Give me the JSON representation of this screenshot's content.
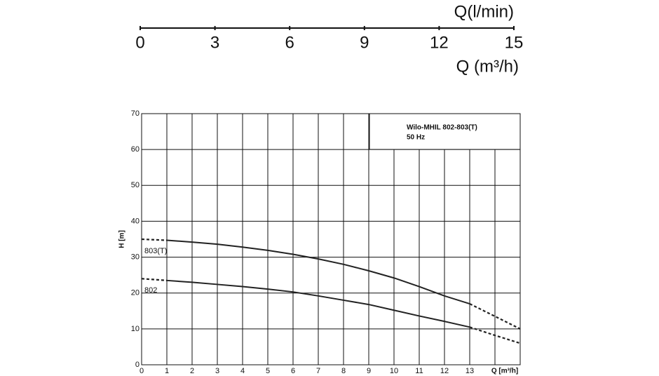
{
  "chart_data": [
    {
      "type": "scale",
      "title": "Q(l/min)",
      "xlabel": "Q (m³/h)",
      "xlim": [
        0,
        15
      ],
      "xticks": [
        0,
        3,
        6,
        9,
        12,
        15
      ]
    },
    {
      "type": "line",
      "title": "Wilo-MHIL 802-803(T)",
      "subtitle": "50 Hz",
      "ylabel": "H [m]",
      "xlabel": "Q [m³/h]",
      "x": [
        0,
        1,
        2,
        3,
        4,
        5,
        6,
        7,
        8,
        9,
        10,
        11,
        12,
        13,
        14,
        15
      ],
      "series": [
        {
          "name": "803(T)",
          "color": "#222222",
          "values": [
            35,
            34.7,
            34.2,
            33.6,
            32.8,
            31.9,
            30.8,
            29.5,
            28,
            26.2,
            24.2,
            21.8,
            19.2,
            17,
            13.5,
            10
          ]
        },
        {
          "name": "802",
          "color": "#222222",
          "values": [
            24,
            23.5,
            23,
            22.4,
            21.8,
            21.1,
            20.3,
            19.2,
            18,
            16.8,
            15.2,
            13.6,
            12.1,
            10.5,
            8.2,
            6
          ]
        }
      ],
      "solid_range": [
        1,
        13
      ],
      "xlim": [
        0,
        15
      ],
      "ylim": [
        0,
        70
      ],
      "xticks": [
        0,
        1,
        2,
        3,
        4,
        5,
        6,
        7,
        8,
        9,
        10,
        11,
        12,
        13
      ],
      "minor_xgrid": [
        14
      ],
      "yticks": [
        0,
        10,
        20,
        30,
        40,
        50,
        60,
        70
      ],
      "grid": true
    }
  ]
}
